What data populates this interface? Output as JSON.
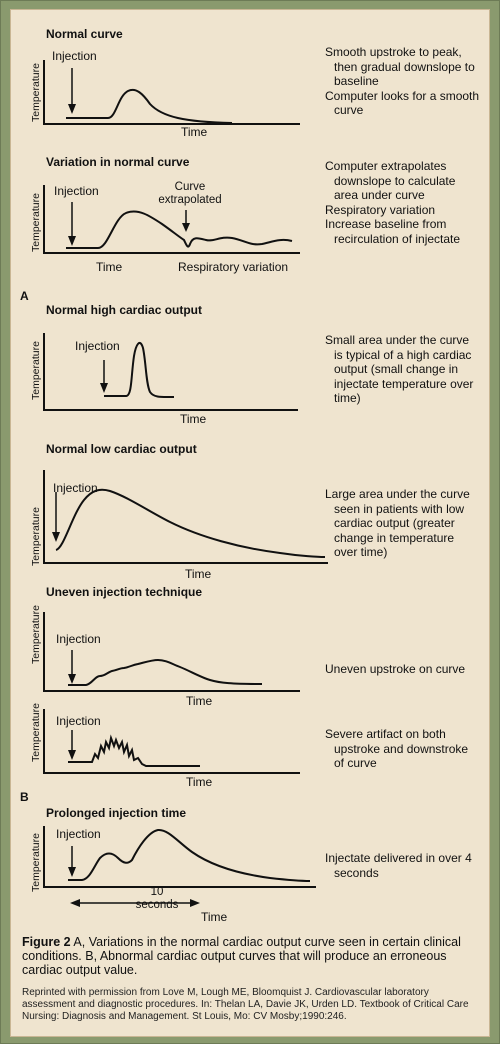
{
  "panels": {
    "normal_curve": {
      "title": "Normal curve",
      "ylabel": "Temperature",
      "xlabel": "Time",
      "injection": "Injection",
      "desc": [
        "Smooth upstroke to peak, then gradual downslope to baseline",
        "Computer looks for a smooth curve"
      ]
    },
    "variation": {
      "title": "Variation in normal curve",
      "ylabel": "Temperature",
      "xlabel": "Time",
      "xlabel2": "Respiratory variation",
      "injection": "Injection",
      "annotation": "Curve extrapolated",
      "desc": [
        "Computer extrapolates downslope to calculate area under curve",
        "Respiratory variation",
        "Increase baseline from recirculation of injectate"
      ]
    },
    "part_a": "A",
    "high_output": {
      "title": "Normal high cardiac output",
      "ylabel": "Temperature",
      "xlabel": "Time",
      "injection": "Injection",
      "desc": [
        "Small area under the curve is typical of a high cardiac output (small change in injectate temperature over time)"
      ]
    },
    "low_output": {
      "title": "Normal low cardiac output",
      "ylabel": "Temperature",
      "xlabel": "Time",
      "injection": "Injection",
      "desc": [
        "Large area under the curve seen in patients with low cardiac output (greater change in temperature over time)"
      ]
    },
    "uneven": {
      "title": "Uneven injection technique",
      "ylabel": "Temperature",
      "xlabel": "Time",
      "injection": "Injection",
      "desc": [
        "Uneven upstroke on curve"
      ]
    },
    "artifact": {
      "ylabel": "Temperature",
      "xlabel": "Time",
      "injection": "Injection",
      "desc": [
        "Severe artifact on both upstroke and downstroke of curve"
      ]
    },
    "part_b": "B",
    "prolonged": {
      "title": "Prolonged injection time",
      "ylabel": "Temperature",
      "xlabel": "Time",
      "injection": "Injection",
      "duration": "10 seconds",
      "desc": [
        "Injectate delivered in over 4 seconds"
      ]
    }
  },
  "caption": {
    "label": "Figure 2",
    "text": "A,  Variations in the normal cardiac output curve seen in certain clinical conditions. B, Abnormal cardiac output curves that will produce an erroneous cardiac output value."
  },
  "credit": "Reprinted with permission from Love M, Lough ME, Bloomquist J. Cardiovascular laboratory assessment and diagnostic procedures. In: Thelan LA, Davie JK, Urden LD. Textbook of Critical Care Nursing: Diagnosis and Management. St Louis, Mo: CV Mosby;1990:246."
}
